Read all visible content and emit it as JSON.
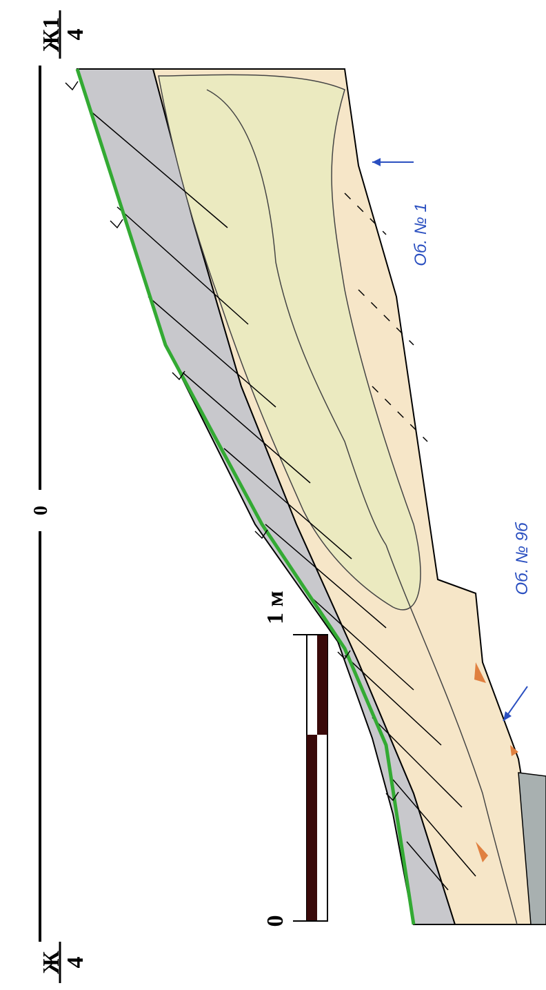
{
  "section": {
    "top_label": {
      "upper": "Ж1",
      "lower": "4"
    },
    "bottom_label": {
      "upper": "Ж",
      "lower": "4"
    },
    "zero_mark": "0",
    "scale": {
      "start": "0",
      "end": "1 м"
    },
    "annotations": [
      "Об. № 1",
      "Об. № 9б"
    ]
  }
}
